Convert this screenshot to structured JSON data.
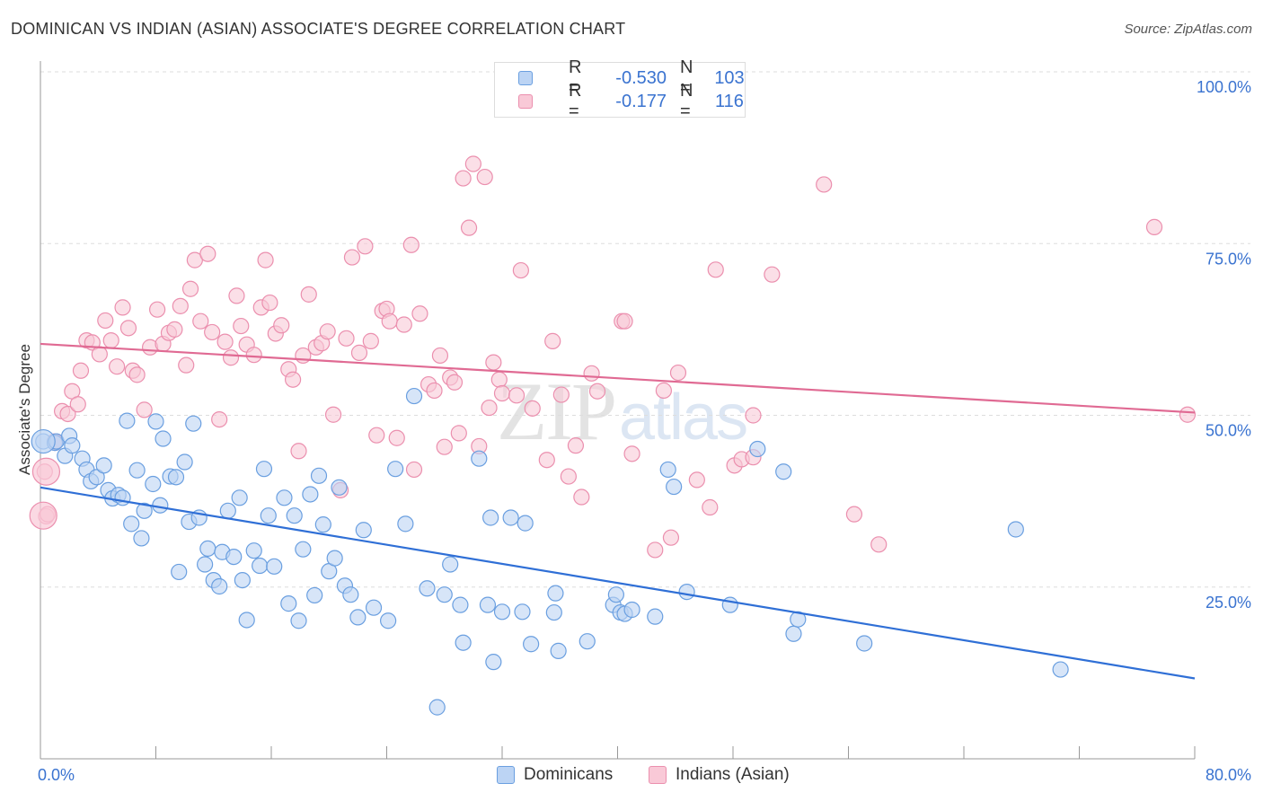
{
  "title": "DOMINICAN VS INDIAN (ASIAN) ASSOCIATE'S DEGREE CORRELATION CHART",
  "source": "Source: ZipAtlas.com",
  "watermark": {
    "zip": "ZIP",
    "atlas": "atlas"
  },
  "legend_top": {
    "rows": [
      {
        "r_label": "R =",
        "r_value": "-0.530",
        "n_label": "N =",
        "n_value": "103"
      },
      {
        "r_label": "R =",
        "r_value": "-0.177",
        "n_label": "N =",
        "n_value": "116"
      }
    ]
  },
  "legend_bottom": {
    "items": [
      "Dominicans",
      "Indians (Asian)"
    ]
  },
  "colors": {
    "blue_fill": "#bcd4f4",
    "blue_stroke": "#6a9fe0",
    "blue_line": "#2f6fd6",
    "pink_fill": "#f9c9d7",
    "pink_stroke": "#eb8fae",
    "pink_line": "#e06a93",
    "tick_label": "#3a73d0",
    "grid": "#dddddd"
  },
  "chart_data": {
    "type": "scatter",
    "title": "DOMINICAN VS INDIAN (ASIAN) ASSOCIATE'S DEGREE CORRELATION CHART",
    "xlabel": "",
    "ylabel": "Associate's Degree",
    "xlim": [
      0,
      80
    ],
    "ylim": [
      0,
      100
    ],
    "x_tick_labels": [
      "0.0%",
      "80.0%"
    ],
    "y_ticks": [
      25,
      50,
      75,
      100
    ],
    "y_tick_labels": [
      "25.0%",
      "50.0%",
      "75.0%",
      "100.0%"
    ],
    "grid": true,
    "legend_position": "top-center",
    "series": [
      {
        "name": "Dominicans",
        "color": "#6a9fe0",
        "r": -0.53,
        "n": 103,
        "trend": {
          "x": [
            0,
            80
          ],
          "y": [
            39.5,
            11.7
          ]
        },
        "points": [
          [
            0.2,
            46.2
          ],
          [
            1.0,
            46.0
          ],
          [
            1.1,
            46.2
          ],
          [
            1.7,
            44.1
          ],
          [
            2.0,
            47.0
          ],
          [
            2.2,
            45.6
          ],
          [
            2.9,
            43.7
          ],
          [
            3.2,
            42.1
          ],
          [
            3.5,
            40.4
          ],
          [
            3.9,
            41.0
          ],
          [
            4.4,
            42.7
          ],
          [
            4.7,
            39.1
          ],
          [
            5.0,
            37.9
          ],
          [
            5.4,
            38.4
          ],
          [
            5.7,
            38.0
          ],
          [
            6.0,
            49.2
          ],
          [
            6.3,
            34.2
          ],
          [
            6.7,
            42.0
          ],
          [
            7.0,
            32.1
          ],
          [
            7.2,
            36.1
          ],
          [
            7.8,
            40.0
          ],
          [
            8.0,
            49.1
          ],
          [
            8.3,
            36.9
          ],
          [
            8.5,
            46.6
          ],
          [
            9.0,
            41.1
          ],
          [
            9.4,
            41.0
          ],
          [
            9.6,
            27.2
          ],
          [
            10.0,
            43.2
          ],
          [
            10.3,
            34.5
          ],
          [
            10.6,
            48.8
          ],
          [
            11.0,
            35.1
          ],
          [
            11.4,
            28.3
          ],
          [
            11.6,
            30.6
          ],
          [
            12.0,
            26.0
          ],
          [
            12.4,
            25.1
          ],
          [
            12.6,
            30.1
          ],
          [
            13.0,
            36.1
          ],
          [
            13.4,
            29.4
          ],
          [
            13.8,
            38.0
          ],
          [
            14.0,
            26.0
          ],
          [
            14.3,
            20.2
          ],
          [
            14.8,
            30.3
          ],
          [
            15.2,
            28.1
          ],
          [
            15.5,
            42.2
          ],
          [
            15.8,
            35.4
          ],
          [
            16.2,
            28.0
          ],
          [
            16.9,
            38.0
          ],
          [
            17.2,
            22.6
          ],
          [
            17.6,
            35.4
          ],
          [
            17.9,
            20.1
          ],
          [
            18.2,
            30.5
          ],
          [
            18.7,
            38.5
          ],
          [
            19.0,
            23.8
          ],
          [
            19.3,
            41.2
          ],
          [
            19.6,
            34.1
          ],
          [
            20.0,
            27.3
          ],
          [
            20.4,
            29.2
          ],
          [
            20.7,
            39.5
          ],
          [
            21.1,
            25.2
          ],
          [
            21.5,
            23.9
          ],
          [
            22.0,
            20.6
          ],
          [
            22.4,
            33.3
          ],
          [
            23.1,
            22.0
          ],
          [
            24.1,
            20.1
          ],
          [
            24.6,
            42.2
          ],
          [
            25.3,
            34.2
          ],
          [
            25.9,
            52.8
          ],
          [
            26.8,
            24.8
          ],
          [
            27.5,
            7.5
          ],
          [
            28.0,
            23.9
          ],
          [
            28.4,
            28.3
          ],
          [
            29.1,
            22.4
          ],
          [
            29.3,
            16.9
          ],
          [
            30.4,
            43.7
          ],
          [
            31.0,
            22.4
          ],
          [
            31.2,
            35.1
          ],
          [
            31.4,
            14.1
          ],
          [
            32.0,
            21.4
          ],
          [
            32.6,
            35.1
          ],
          [
            33.4,
            21.4
          ],
          [
            33.6,
            34.3
          ],
          [
            34.0,
            16.7
          ],
          [
            35.6,
            21.3
          ],
          [
            35.7,
            24.1
          ],
          [
            35.9,
            15.7
          ],
          [
            37.9,
            17.1
          ],
          [
            39.7,
            22.4
          ],
          [
            39.9,
            23.9
          ],
          [
            40.2,
            21.3
          ],
          [
            40.5,
            21.1
          ],
          [
            41.0,
            21.7
          ],
          [
            42.6,
            20.7
          ],
          [
            43.5,
            42.1
          ],
          [
            43.9,
            39.6
          ],
          [
            44.8,
            24.3
          ],
          [
            47.8,
            22.4
          ],
          [
            49.7,
            45.1
          ],
          [
            51.5,
            41.8
          ],
          [
            52.2,
            18.2
          ],
          [
            52.5,
            20.3
          ],
          [
            57.1,
            16.8
          ],
          [
            67.6,
            33.4
          ],
          [
            70.7,
            13.0
          ]
        ]
      },
      {
        "name": "Indians (Asian)",
        "color": "#eb8fae",
        "r": -0.177,
        "n": 116,
        "trend": {
          "x": [
            0,
            80
          ],
          "y": [
            60.4,
            50.4
          ]
        },
        "points": [
          [
            0.3,
            41.8
          ],
          [
            0.4,
            35.3
          ],
          [
            1.0,
            46.2
          ],
          [
            1.5,
            50.6
          ],
          [
            1.9,
            50.2
          ],
          [
            2.2,
            53.5
          ],
          [
            2.6,
            51.6
          ],
          [
            2.8,
            56.5
          ],
          [
            3.2,
            60.9
          ],
          [
            3.6,
            60.6
          ],
          [
            4.1,
            58.9
          ],
          [
            4.5,
            63.8
          ],
          [
            4.9,
            60.9
          ],
          [
            5.3,
            57.1
          ],
          [
            5.7,
            65.7
          ],
          [
            6.1,
            62.7
          ],
          [
            6.4,
            56.5
          ],
          [
            6.7,
            55.9
          ],
          [
            7.2,
            50.8
          ],
          [
            7.6,
            59.9
          ],
          [
            8.1,
            65.4
          ],
          [
            8.5,
            60.4
          ],
          [
            8.9,
            62.0
          ],
          [
            9.3,
            62.5
          ],
          [
            9.7,
            65.9
          ],
          [
            10.1,
            57.3
          ],
          [
            10.4,
            68.4
          ],
          [
            10.7,
            72.6
          ],
          [
            11.1,
            63.7
          ],
          [
            11.6,
            73.5
          ],
          [
            11.9,
            62.1
          ],
          [
            12.4,
            49.4
          ],
          [
            12.8,
            60.7
          ],
          [
            13.2,
            58.4
          ],
          [
            13.6,
            67.4
          ],
          [
            13.9,
            63.0
          ],
          [
            14.3,
            60.3
          ],
          [
            14.8,
            58.8
          ],
          [
            15.3,
            65.7
          ],
          [
            15.6,
            72.6
          ],
          [
            15.9,
            66.4
          ],
          [
            16.3,
            61.9
          ],
          [
            16.7,
            63.1
          ],
          [
            17.2,
            56.7
          ],
          [
            17.5,
            55.2
          ],
          [
            17.9,
            44.8
          ],
          [
            18.2,
            58.7
          ],
          [
            18.6,
            67.6
          ],
          [
            19.1,
            59.9
          ],
          [
            19.5,
            60.5
          ],
          [
            19.9,
            62.2
          ],
          [
            20.3,
            50.1
          ],
          [
            20.8,
            39.1
          ],
          [
            21.2,
            61.2
          ],
          [
            21.6,
            73.0
          ],
          [
            22.1,
            59.1
          ],
          [
            22.5,
            74.6
          ],
          [
            22.9,
            60.8
          ],
          [
            23.3,
            47.1
          ],
          [
            23.7,
            65.2
          ],
          [
            24.0,
            65.5
          ],
          [
            24.2,
            63.7
          ],
          [
            24.7,
            46.7
          ],
          [
            25.2,
            63.2
          ],
          [
            25.7,
            74.8
          ],
          [
            25.9,
            42.1
          ],
          [
            26.3,
            64.8
          ],
          [
            26.9,
            54.5
          ],
          [
            27.3,
            53.6
          ],
          [
            27.7,
            58.7
          ],
          [
            28.0,
            45.4
          ],
          [
            28.4,
            55.5
          ],
          [
            28.7,
            54.8
          ],
          [
            29.0,
            47.4
          ],
          [
            29.3,
            84.5
          ],
          [
            29.7,
            77.3
          ],
          [
            30.0,
            86.6
          ],
          [
            30.4,
            45.5
          ],
          [
            30.8,
            84.7
          ],
          [
            31.1,
            51.1
          ],
          [
            31.4,
            57.7
          ],
          [
            31.8,
            55.2
          ],
          [
            32.0,
            53.2
          ],
          [
            33.0,
            52.9
          ],
          [
            33.3,
            71.1
          ],
          [
            34.1,
            51.0
          ],
          [
            35.1,
            43.5
          ],
          [
            35.5,
            60.8
          ],
          [
            36.1,
            53.0
          ],
          [
            36.6,
            41.1
          ],
          [
            37.1,
            45.6
          ],
          [
            37.5,
            38.1
          ],
          [
            38.2,
            56.1
          ],
          [
            38.6,
            53.5
          ],
          [
            40.3,
            63.7
          ],
          [
            40.5,
            63.7
          ],
          [
            41.0,
            44.4
          ],
          [
            42.6,
            30.4
          ],
          [
            43.2,
            53.6
          ],
          [
            43.7,
            32.2
          ],
          [
            44.2,
            56.2
          ],
          [
            45.5,
            40.6
          ],
          [
            46.4,
            36.6
          ],
          [
            46.8,
            71.2
          ],
          [
            48.1,
            42.7
          ],
          [
            48.6,
            43.6
          ],
          [
            49.4,
            50.0
          ],
          [
            49.4,
            43.9
          ],
          [
            50.7,
            70.5
          ],
          [
            54.3,
            83.6
          ],
          [
            56.4,
            35.6
          ],
          [
            58.1,
            31.2
          ],
          [
            77.2,
            77.4
          ],
          [
            79.5,
            50.1
          ],
          [
            0.5,
            35.6
          ],
          [
            1.0,
            46.0
          ]
        ]
      }
    ]
  }
}
